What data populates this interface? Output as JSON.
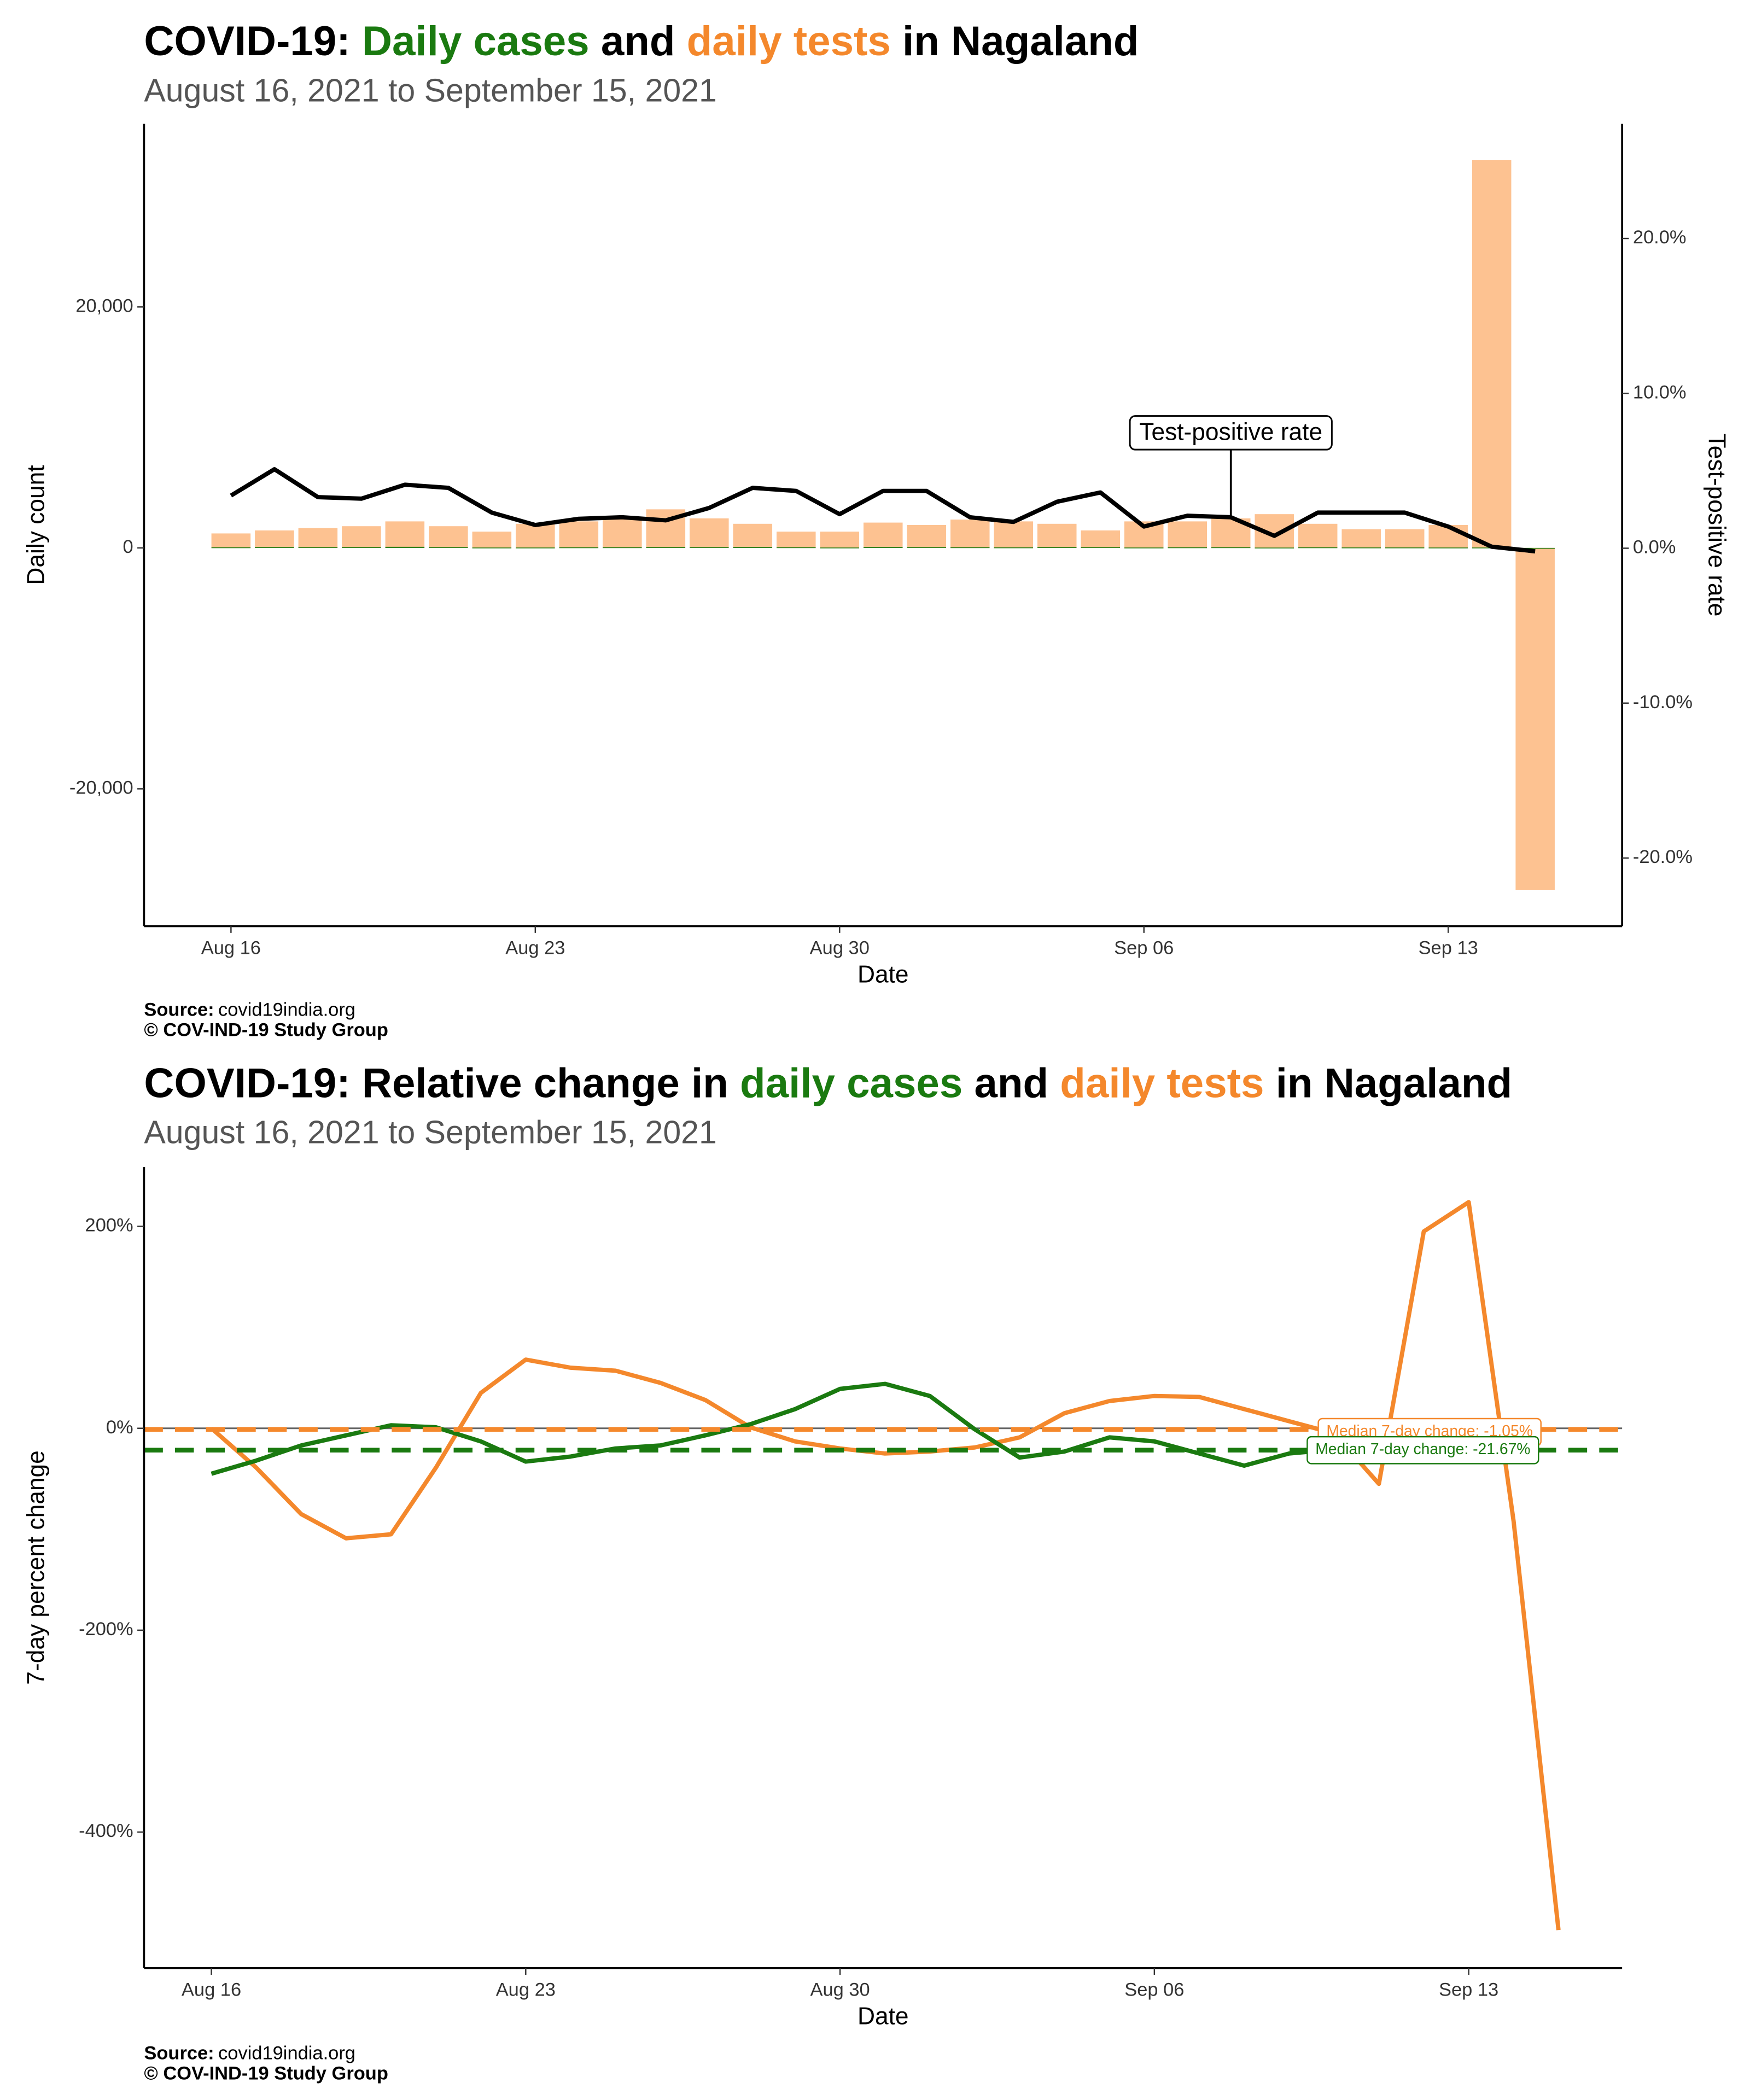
{
  "chart_data": [
    {
      "type": "bar",
      "title_parts": [
        {
          "text": "COVID-19: ",
          "color": "#000000"
        },
        {
          "text": "Daily cases",
          "color": "#1a7a10"
        },
        {
          "text": " and ",
          "color": "#000000"
        },
        {
          "text": "daily tests",
          "color": "#f4882c"
        },
        {
          "text": " in Nagaland",
          "color": "#000000"
        }
      ],
      "subtitle": "August 16, 2021 to September 15, 2021",
      "x": [
        "2021-08-16",
        "2021-08-17",
        "2021-08-18",
        "2021-08-19",
        "2021-08-20",
        "2021-08-21",
        "2021-08-22",
        "2021-08-23",
        "2021-08-24",
        "2021-08-25",
        "2021-08-26",
        "2021-08-27",
        "2021-08-28",
        "2021-08-29",
        "2021-08-30",
        "2021-08-31",
        "2021-09-01",
        "2021-09-02",
        "2021-09-03",
        "2021-09-04",
        "2021-09-05",
        "2021-09-06",
        "2021-09-07",
        "2021-09-08",
        "2021-09-09",
        "2021-09-10",
        "2021-09-11",
        "2021-09-12",
        "2021-09-13",
        "2021-09-14",
        "2021-09-15"
      ],
      "series": [
        {
          "type": "bar",
          "color": "#fdc291",
          "values": [
            1200,
            1450,
            1650,
            1800,
            2200,
            1800,
            1350,
            2000,
            2200,
            2450,
            3200,
            2450,
            2000,
            1350,
            1350,
            2100,
            1900,
            2350,
            2200,
            2000,
            1450,
            2200,
            2200,
            2450,
            2800,
            2000,
            1550,
            1550,
            1900,
            32180,
            -28380
          ]
        },
        {
          "type": "bar",
          "color": "#1a7a10",
          "values": [
            45,
            75,
            55,
            60,
            90,
            70,
            30,
            30,
            45,
            50,
            60,
            65,
            80,
            50,
            30,
            80,
            70,
            50,
            40,
            60,
            55,
            30,
            45,
            50,
            25,
            45,
            35,
            35,
            30,
            30,
            0
          ]
        },
        {
          "type": "line",
          "axis": "y2",
          "color": "#000000",
          "values": [
            3.4,
            5.1,
            3.3,
            3.2,
            4.1,
            3.9,
            2.3,
            1.5,
            1.9,
            2.0,
            1.8,
            2.6,
            3.9,
            3.7,
            2.2,
            3.7,
            3.7,
            2.0,
            1.7,
            3.0,
            3.6,
            1.4,
            2.1,
            2.0,
            0.8,
            2.3,
            2.3,
            2.3,
            1.4,
            0.1,
            -0.2
          ]
        }
      ],
      "xlim": [
        "2021-08-14",
        "2021-09-17"
      ],
      "xticks": [
        {
          "value": "2021-08-16",
          "label": "Aug 16"
        },
        {
          "value": "2021-08-23",
          "label": "Aug 23"
        },
        {
          "value": "2021-08-30",
          "label": "Aug 30"
        },
        {
          "value": "2021-09-06",
          "label": "Sep 06"
        },
        {
          "value": "2021-09-13",
          "label": "Sep 13"
        }
      ],
      "ylim": [
        -31400,
        35200
      ],
      "yticks": [
        {
          "value": 20000,
          "label": "20,000"
        },
        0,
        {
          "value": -20000,
          "label": "-20,000"
        }
      ],
      "y2lim": [
        -24.4,
        27.4
      ],
      "y2ticks": [
        {
          "value": 20,
          "label": "20.0%"
        },
        {
          "value": 10,
          "label": "10.0%"
        },
        {
          "value": 0,
          "label": "0.0%"
        },
        {
          "value": -10,
          "label": "-10.0%"
        },
        {
          "value": -20,
          "label": "-20.0%"
        }
      ],
      "xlabel": "Date",
      "ylabel": "Daily count",
      "y2label": "Test-positive rate",
      "annotation": {
        "text": "Test-positive rate",
        "x": "2021-09-08"
      },
      "source_label": "Source:",
      "source": "covid19india.org",
      "credit": "© COV-IND-19 Study Group"
    },
    {
      "type": "line",
      "title_parts": [
        {
          "text": "COVID-19: Relative change in ",
          "color": "#000000"
        },
        {
          "text": "daily cases",
          "color": "#1a7a10"
        },
        {
          "text": " and ",
          "color": "#000000"
        },
        {
          "text": "daily tests",
          "color": "#f4882c"
        },
        {
          "text": " in Nagaland",
          "color": "#000000"
        }
      ],
      "subtitle": "August 16, 2021 to September 15, 2021",
      "x": [
        "2021-08-16",
        "2021-08-17",
        "2021-08-18",
        "2021-08-19",
        "2021-08-20",
        "2021-08-21",
        "2021-08-22",
        "2021-08-23",
        "2021-08-24",
        "2021-08-25",
        "2021-08-26",
        "2021-08-27",
        "2021-08-28",
        "2021-08-29",
        "2021-08-30",
        "2021-08-31",
        "2021-09-01",
        "2021-09-02",
        "2021-09-03",
        "2021-09-04",
        "2021-09-05",
        "2021-09-06",
        "2021-09-07",
        "2021-09-08",
        "2021-09-09",
        "2021-09-10",
        "2021-09-11",
        "2021-09-12",
        "2021-09-13",
        "2021-09-14",
        "2021-09-15"
      ],
      "series": [
        {
          "type": "line",
          "color": "#f4882c",
          "values": [
            0,
            -39,
            -85,
            -109,
            -105,
            -39,
            35,
            68,
            60,
            57,
            45,
            28,
            1,
            -13,
            -20,
            -25,
            -23,
            -19,
            -9,
            15,
            27,
            32,
            31,
            19,
            7,
            -5,
            -55,
            195,
            224,
            -92,
            -497
          ]
        },
        {
          "type": "line",
          "color": "#1a7a10",
          "values": [
            -45,
            -32,
            -17,
            -7,
            3,
            1,
            -13,
            -33,
            -28,
            -20,
            -17,
            -7,
            4,
            19,
            39,
            44,
            32,
            -1,
            -29,
            -23,
            -9,
            -13,
            -25,
            -37,
            -25,
            -21,
            null,
            null,
            null,
            null,
            null
          ]
        }
      ],
      "hlines": [
        {
          "value": -1.05,
          "label": "Median 7-day change: -1.05%",
          "color": "#f4882c"
        },
        {
          "value": -21.67,
          "label": "Median 7-day change: -21.67%",
          "color": "#1a7a10"
        }
      ],
      "zero_line": true,
      "xlim": [
        "2021-08-14 12:00",
        "2021-09-16 10:00"
      ],
      "xticks": [
        {
          "value": "2021-08-16",
          "label": "Aug 16"
        },
        {
          "value": "2021-08-23",
          "label": "Aug 23"
        },
        {
          "value": "2021-08-30",
          "label": "Aug 30"
        },
        {
          "value": "2021-09-06",
          "label": "Sep 06"
        },
        {
          "value": "2021-09-13",
          "label": "Sep 13"
        }
      ],
      "ylim": [
        -534.7,
        258.7
      ],
      "yticks": [
        {
          "value": 200,
          "label": "200%"
        },
        {
          "value": 0,
          "label": "0%"
        },
        {
          "value": -200,
          "label": "-200%"
        },
        {
          "value": -400,
          "label": "-400%"
        }
      ],
      "xlabel": "Date",
      "ylabel": "7-day percent change",
      "source_label": "Source:",
      "source": "covid19india.org",
      "credit": "© COV-IND-19 Study Group"
    }
  ]
}
